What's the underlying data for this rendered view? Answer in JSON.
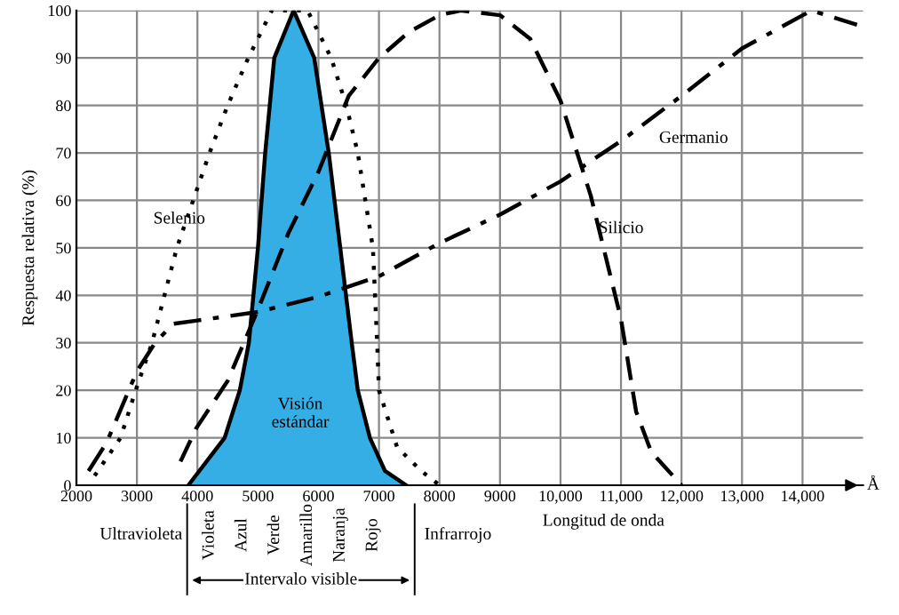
{
  "chart_data": {
    "type": "line",
    "xlabel": "Longitud de onda",
    "ylabel": "Respuesta relativa (%)",
    "xlim": [
      2000,
      15000
    ],
    "ylim": [
      0,
      100
    ],
    "xticks": [
      2000,
      3000,
      4000,
      5000,
      6000,
      7000,
      8000,
      9000,
      {
        "value": 10000,
        "label": "10,000"
      },
      {
        "value": 11000,
        "label": "11,000"
      },
      {
        "value": 12000,
        "label": "12,000"
      },
      {
        "value": 13000,
        "label": "13,000"
      },
      {
        "value": 14000,
        "label": "14,000"
      }
    ],
    "yticks": [
      0,
      10,
      20,
      30,
      40,
      50,
      60,
      70,
      80,
      90,
      100
    ],
    "grid": true,
    "legend": false,
    "series": [
      {
        "name": "Visión estándar",
        "type": "area",
        "color": "#35aee6",
        "x": [
          3850,
          4450,
          4700,
          4850,
          5000,
          5120,
          5270,
          5590,
          5930,
          6170,
          6360,
          6550,
          6650,
          6850,
          7100,
          7450
        ],
        "values": [
          0,
          10,
          20,
          30,
          50,
          70,
          90,
          100,
          90,
          70,
          50,
          30,
          20,
          10,
          3,
          0
        ]
      },
      {
        "name": "Selenio",
        "line_style": "dotted",
        "color": "#000000",
        "x": [
          2300,
          2730,
          2980,
          3250,
          3660,
          4200,
          4500,
          4840,
          5230,
          5820,
          6210,
          6460,
          6650,
          6900,
          6970,
          7000,
          7300,
          7700,
          8000
        ],
        "values": [
          2,
          10,
          20,
          30,
          50,
          70,
          80,
          90,
          100,
          100,
          90,
          80,
          70,
          50,
          30,
          20,
          8,
          3,
          0
        ]
      },
      {
        "name": "Silicio",
        "line_style": "dashed",
        "color": "#000000",
        "x": [
          3720,
          3980,
          4500,
          5000,
          5500,
          6000,
          6500,
          7000,
          7500,
          8000,
          8350,
          9000,
          9500,
          10000,
          10500,
          11000,
          11250,
          11500,
          12000
        ],
        "values": [
          5,
          12,
          22,
          37,
          53,
          66,
          82,
          90,
          95.5,
          99,
          100,
          99,
          94,
          81,
          61,
          35,
          15.5,
          7,
          0
        ]
      },
      {
        "name": "Germanio",
        "line_style": "dashdot",
        "color": "#000000",
        "x": [
          2200,
          2500,
          3000,
          3300,
          3600,
          4000,
          5000,
          6000,
          7000,
          8000,
          9000,
          10000,
          11000,
          12000,
          13000,
          14150,
          14900
        ],
        "values": [
          3,
          9,
          24,
          30,
          34,
          34.7,
          36.5,
          39.7,
          44,
          51,
          57,
          64,
          72.5,
          82,
          92,
          100,
          97
        ]
      }
    ],
    "annotations": [
      "Å",
      "Ultravioleta",
      "Violeta",
      "Azul",
      "Verde",
      "Amarillo",
      "Naranja",
      "Rojo",
      "Infrarrojo",
      "Intervalo visible"
    ]
  }
}
